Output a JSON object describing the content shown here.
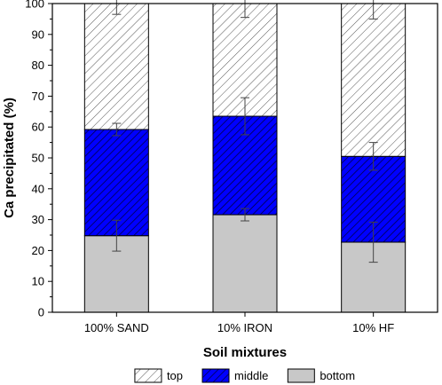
{
  "chart_data": {
    "type": "bar",
    "stacked": true,
    "categories": [
      "100% SAND",
      "10% IRON",
      "10% HF"
    ],
    "series": [
      {
        "name": "bottom",
        "values": [
          24.8,
          31.6,
          22.7
        ],
        "errors": [
          5.0,
          2.0,
          6.5
        ],
        "fill": "#c8c8c8",
        "pattern": "none"
      },
      {
        "name": "middle",
        "values": [
          34.4,
          31.9,
          27.8
        ],
        "errors": [
          2.0,
          6.0,
          4.5
        ],
        "fill": "#0000ff",
        "pattern": "hatch-diagonal-dense"
      },
      {
        "name": "top",
        "values": [
          40.8,
          36.5,
          49.5
        ],
        "errors": [
          3.5,
          4.5,
          5.0
        ],
        "fill": "#ffffff",
        "pattern": "hatch-diagonal"
      }
    ],
    "title": "",
    "xlabel": "Soil mixtures",
    "ylabel": "Ca precipitated (%)",
    "ylim": [
      0,
      100
    ],
    "yticks": [
      0,
      10,
      20,
      30,
      40,
      50,
      60,
      70,
      80,
      90,
      100
    ],
    "grid": false,
    "legend": {
      "placement": "bottom",
      "order": [
        "top",
        "middle",
        "bottom"
      ]
    }
  }
}
